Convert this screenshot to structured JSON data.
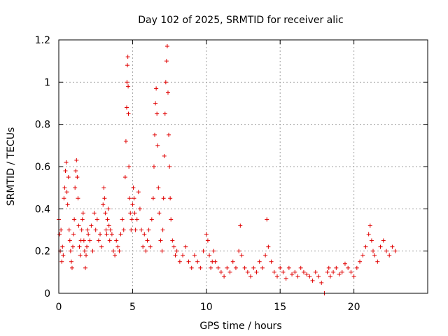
{
  "chart_data": {
    "type": "scatter",
    "title": "Day 102 of 2025, SRMTID for receiver alic",
    "xlabel": "GPS time / hours",
    "ylabel": "SRMTID / TECUs",
    "xlim": [
      0,
      25
    ],
    "ylim": [
      0,
      1.2
    ],
    "x_ticks": [
      0,
      5,
      10,
      15,
      20
    ],
    "x_tick_labels": [
      "0",
      "5",
      "10",
      "15",
      "20"
    ],
    "y_ticks": [
      0,
      0.2,
      0.4,
      0.6,
      0.8,
      1.0,
      1.2
    ],
    "y_tick_labels": [
      "0",
      "0.2",
      "0.4",
      "0.6",
      "0.8",
      "1",
      "1.2"
    ],
    "grid": true,
    "marker": "plus",
    "color": "#e00000",
    "series": [
      {
        "name": "SRMTID",
        "x": [
          0.0,
          0.05,
          0.1,
          0.15,
          0.2,
          0.25,
          0.3,
          0.35,
          0.4,
          0.45,
          0.5,
          0.55,
          0.6,
          0.65,
          0.7,
          0.75,
          0.8,
          0.85,
          0.9,
          0.95,
          1.0,
          1.05,
          1.1,
          1.15,
          1.2,
          1.25,
          1.3,
          1.35,
          1.4,
          1.45,
          1.5,
          1.55,
          1.6,
          1.65,
          1.7,
          1.75,
          1.8,
          1.85,
          1.9,
          1.95,
          2.0,
          2.1,
          2.2,
          2.3,
          2.4,
          2.5,
          2.6,
          2.7,
          2.8,
          2.9,
          3.0,
          3.05,
          3.1,
          3.15,
          3.2,
          3.25,
          3.3,
          3.35,
          3.4,
          3.45,
          3.5,
          3.6,
          3.7,
          3.8,
          3.9,
          4.0,
          4.1,
          4.2,
          4.3,
          4.4,
          4.5,
          4.55,
          4.6,
          4.62,
          4.65,
          4.68,
          4.7,
          4.72,
          4.75,
          4.8,
          4.85,
          4.9,
          4.95,
          5.0,
          5.05,
          5.1,
          5.15,
          5.2,
          5.3,
          5.4,
          5.5,
          5.6,
          5.7,
          5.8,
          5.9,
          6.0,
          6.1,
          6.2,
          6.3,
          6.4,
          6.45,
          6.5,
          6.55,
          6.6,
          6.65,
          6.7,
          6.75,
          6.8,
          6.9,
          7.0,
          7.05,
          7.1,
          7.15,
          7.2,
          7.25,
          7.3,
          7.35,
          7.4,
          7.45,
          7.5,
          7.55,
          7.6,
          7.7,
          7.8,
          7.9,
          8.0,
          8.2,
          8.4,
          8.6,
          8.8,
          9.0,
          9.2,
          9.4,
          9.6,
          9.8,
          10.0,
          10.1,
          10.2,
          10.3,
          10.4,
          10.5,
          10.6,
          10.8,
          11.0,
          11.2,
          11.4,
          11.6,
          11.8,
          12.0,
          12.2,
          12.3,
          12.4,
          12.6,
          12.8,
          13.0,
          13.2,
          13.4,
          13.6,
          13.8,
          14.0,
          14.1,
          14.2,
          14.4,
          14.6,
          14.8,
          15.0,
          15.2,
          15.4,
          15.6,
          15.8,
          16.0,
          16.2,
          16.4,
          16.6,
          16.8,
          17.0,
          17.2,
          17.4,
          17.6,
          17.8,
          18.0,
          18.2,
          18.3,
          18.4,
          18.6,
          18.8,
          19.0,
          19.2,
          19.4,
          19.6,
          19.8,
          20.0,
          20.2,
          20.4,
          20.6,
          20.8,
          21.0,
          21.1,
          21.2,
          21.3,
          21.4,
          21.6,
          21.8,
          22.0,
          22.2,
          22.4,
          22.6,
          22.8
        ],
        "y": [
          0.35,
          0.28,
          0.2,
          0.3,
          0.15,
          0.22,
          0.18,
          0.45,
          0.5,
          0.58,
          0.62,
          0.48,
          0.42,
          0.55,
          0.3,
          0.25,
          0.2,
          0.15,
          0.12,
          0.22,
          0.28,
          0.35,
          0.5,
          0.58,
          0.63,
          0.55,
          0.45,
          0.32,
          0.22,
          0.18,
          0.25,
          0.3,
          0.35,
          0.38,
          0.25,
          0.2,
          0.12,
          0.18,
          0.22,
          0.3,
          0.28,
          0.25,
          0.32,
          0.2,
          0.38,
          0.3,
          0.35,
          0.25,
          0.28,
          0.22,
          0.42,
          0.5,
          0.45,
          0.38,
          0.3,
          0.28,
          0.35,
          0.4,
          0.32,
          0.25,
          0.3,
          0.28,
          0.2,
          0.18,
          0.25,
          0.22,
          0.2,
          0.28,
          0.35,
          0.3,
          0.55,
          0.72,
          0.88,
          1.0,
          1.08,
          1.12,
          0.98,
          0.85,
          0.6,
          0.45,
          0.38,
          0.3,
          0.35,
          0.42,
          0.5,
          0.45,
          0.38,
          0.3,
          0.35,
          0.48,
          0.4,
          0.3,
          0.22,
          0.28,
          0.2,
          0.25,
          0.3,
          0.22,
          0.35,
          0.45,
          0.6,
          0.75,
          0.9,
          0.97,
          0.85,
          0.7,
          0.5,
          0.38,
          0.25,
          0.2,
          0.3,
          0.45,
          0.65,
          0.85,
          1.0,
          1.1,
          1.17,
          0.95,
          0.75,
          0.6,
          0.45,
          0.35,
          0.25,
          0.22,
          0.18,
          0.2,
          0.15,
          0.18,
          0.22,
          0.15,
          0.12,
          0.18,
          0.15,
          0.12,
          0.2,
          0.28,
          0.25,
          0.18,
          0.12,
          0.15,
          0.2,
          0.15,
          0.12,
          0.1,
          0.08,
          0.12,
          0.1,
          0.15,
          0.12,
          0.2,
          0.32,
          0.18,
          0.12,
          0.1,
          0.08,
          0.12,
          0.1,
          0.15,
          0.12,
          0.18,
          0.35,
          0.22,
          0.15,
          0.1,
          0.08,
          0.12,
          0.1,
          0.07,
          0.12,
          0.09,
          0.1,
          0.08,
          0.12,
          0.1,
          0.09,
          0.08,
          0.06,
          0.1,
          0.08,
          0.05,
          0.0,
          0.1,
          0.12,
          0.08,
          0.1,
          0.12,
          0.09,
          0.1,
          0.14,
          0.12,
          0.1,
          0.08,
          0.12,
          0.15,
          0.18,
          0.22,
          0.28,
          0.32,
          0.25,
          0.2,
          0.18,
          0.15,
          0.22,
          0.25,
          0.2,
          0.18,
          0.22,
          0.2
        ]
      }
    ]
  }
}
